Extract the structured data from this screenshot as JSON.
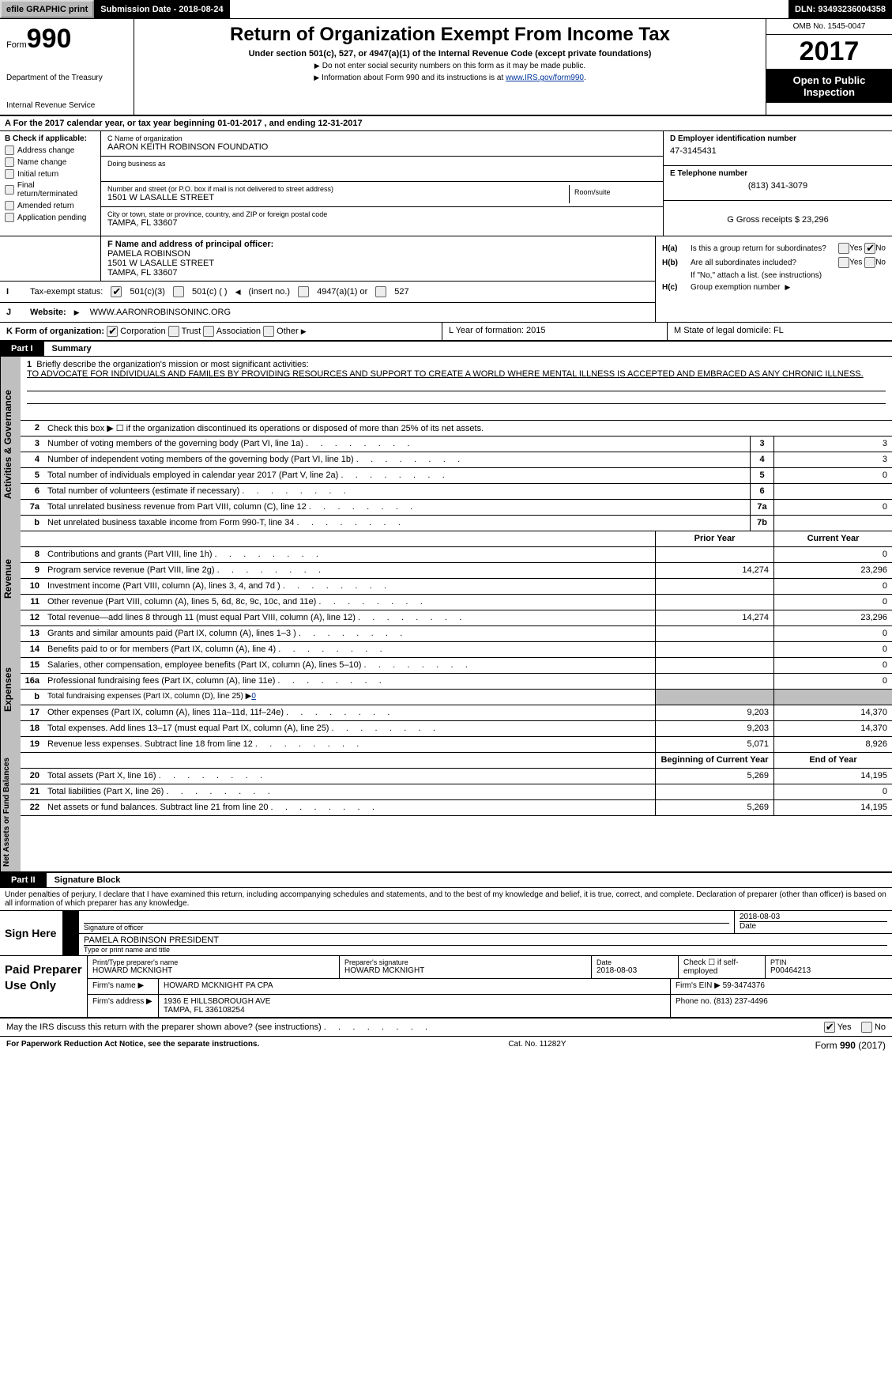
{
  "topbar": {
    "efile": "efile GRAPHIC print",
    "submission": "Submission Date - 2018-08-24",
    "dln": "DLN: 93493236004358"
  },
  "header": {
    "form_word": "Form",
    "form_no": "990",
    "title": "Return of Organization Exempt From Income Tax",
    "subtitle": "Under section 501(c), 527, or 4947(a)(1) of the Internal Revenue Code (except private foundations)",
    "note1": "Do not enter social security numbers on this form as it may be made public.",
    "note2_a": "Information about Form 990 and its instructions is at ",
    "note2_link": "www.IRS.gov/form990",
    "dept": "Department of the Treasury",
    "irs": "Internal Revenue Service",
    "omb": "OMB No. 1545-0047",
    "year": "2017",
    "open1": "Open to Public",
    "open2": "Inspection"
  },
  "row_a": "A   For the 2017 calendar year, or tax year beginning 01-01-2017       , and ending 12-31-2017",
  "col_b": {
    "hdr": "B Check if applicable:",
    "items": [
      "Address change",
      "Name change",
      "Initial return",
      "Final return/terminated",
      "Amended return",
      "Application pending"
    ]
  },
  "col_c": {
    "name_lbl": "C Name of organization",
    "name_val": "AARON KEITH ROBINSON FOUNDATIO",
    "dba_lbl": "Doing business as",
    "addr_lbl": "Number and street (or P.O. box if mail is not delivered to street address)",
    "addr_val": "1501 W LASALLE STREET",
    "room_lbl": "Room/suite",
    "city_lbl": "City or town, state or province, country, and ZIP or foreign postal code",
    "city_val": "TAMPA, FL  33607"
  },
  "col_d": {
    "ein_lbl": "D Employer identification number",
    "ein_val": "47-3145431",
    "tel_lbl": "E Telephone number",
    "tel_val": "(813) 341-3079",
    "gross_lbl": "G Gross receipts $ 23,296"
  },
  "fg": {
    "f_lbl": "F Name and address of principal officer:",
    "f_name": "PAMELA ROBINSON",
    "f_addr1": "1501 W LASALLE STREET",
    "f_addr2": "TAMPA, FL  33607",
    "i_lbl": "Tax-exempt status:",
    "i_501c3": "501(c)(3)",
    "i_501c": "501(c) (   )",
    "i_insert": "(insert no.)",
    "i_4947": "4947(a)(1) or",
    "i_527": "527",
    "j_lbl": "Website:",
    "j_val": "WWW.AARONROBINSONINC.ORG"
  },
  "ha": {
    "ha_q": "Is this a group return for subordinates?",
    "hb_q": "Are all subordinates included?",
    "hb_note": "If \"No,\" attach a list. (see instructions)",
    "hc_q": "Group exemption number",
    "yes": "Yes",
    "no": "No"
  },
  "k": {
    "lbl": "K Form of organization:",
    "corp": "Corporation",
    "trust": "Trust",
    "assoc": "Association",
    "other": "Other"
  },
  "lm": {
    "l": "L Year of formation: 2015",
    "m": "M State of legal domicile: FL"
  },
  "part1": {
    "pt": "Part I",
    "pn": "Summary",
    "tab1": "Activities & Governance",
    "tab2": "Revenue",
    "tab3": "Expenses",
    "tab4": "Net Assets or Fund Balances",
    "l1_lbl": "Briefly describe the organization's mission or most significant activities:",
    "l1_val": "TO ADVOCATE FOR INDIVIDUALS AND FAMILES BY PROVIDING RESOURCES AND SUPPORT TO CREATE A WORLD WHERE MENTAL ILLNESS IS ACCEPTED AND EMBRACED AS ANY CHRONIC ILLNESS.",
    "l2": "Check this box ▶ ☐   if the organization discontinued its operations or disposed of more than 25% of its net assets.",
    "lines_gov": [
      {
        "n": "3",
        "d": "Number of voting members of the governing body (Part VI, line 1a)",
        "box": "3",
        "v": "3"
      },
      {
        "n": "4",
        "d": "Number of independent voting members of the governing body (Part VI, line 1b)",
        "box": "4",
        "v": "3"
      },
      {
        "n": "5",
        "d": "Total number of individuals employed in calendar year 2017 (Part V, line 2a)",
        "box": "5",
        "v": "0"
      },
      {
        "n": "6",
        "d": "Total number of volunteers (estimate if necessary)",
        "box": "6",
        "v": ""
      },
      {
        "n": "7a",
        "d": "Total unrelated business revenue from Part VIII, column (C), line 12",
        "box": "7a",
        "v": "0"
      },
      {
        "n": "b",
        "d": "Net unrelated business taxable income from Form 990-T, line 34",
        "box": "7b",
        "v": ""
      }
    ],
    "hdr_prior": "Prior Year",
    "hdr_curr": "Current Year",
    "lines_rev": [
      {
        "n": "8",
        "d": "Contributions and grants (Part VIII, line 1h)",
        "p": "",
        "c": "0"
      },
      {
        "n": "9",
        "d": "Program service revenue (Part VIII, line 2g)",
        "p": "14,274",
        "c": "23,296"
      },
      {
        "n": "10",
        "d": "Investment income (Part VIII, column (A), lines 3, 4, and 7d )",
        "p": "",
        "c": "0"
      },
      {
        "n": "11",
        "d": "Other revenue (Part VIII, column (A), lines 5, 6d, 8c, 9c, 10c, and 11e)",
        "p": "",
        "c": "0"
      },
      {
        "n": "12",
        "d": "Total revenue—add lines 8 through 11 (must equal Part VIII, column (A), line 12)",
        "p": "14,274",
        "c": "23,296"
      }
    ],
    "lines_exp": [
      {
        "n": "13",
        "d": "Grants and similar amounts paid (Part IX, column (A), lines 1–3 )",
        "p": "",
        "c": "0"
      },
      {
        "n": "14",
        "d": "Benefits paid to or for members (Part IX, column (A), line 4)",
        "p": "",
        "c": "0"
      },
      {
        "n": "15",
        "d": "Salaries, other compensation, employee benefits (Part IX, column (A), lines 5–10)",
        "p": "",
        "c": "0"
      },
      {
        "n": "16a",
        "d": "Professional fundraising fees (Part IX, column (A), line 11e)",
        "p": "",
        "c": "0"
      }
    ],
    "l16b": "Total fundraising expenses (Part IX, column (D), line 25) ▶",
    "l16b_val": "0",
    "lines_exp2": [
      {
        "n": "17",
        "d": "Other expenses (Part IX, column (A), lines 11a–11d, 11f–24e)",
        "p": "9,203",
        "c": "14,370"
      },
      {
        "n": "18",
        "d": "Total expenses. Add lines 13–17 (must equal Part IX, column (A), line 25)",
        "p": "9,203",
        "c": "14,370"
      },
      {
        "n": "19",
        "d": "Revenue less expenses. Subtract line 18 from line 12",
        "p": "5,071",
        "c": "8,926"
      }
    ],
    "hdr_begin": "Beginning of Current Year",
    "hdr_end": "End of Year",
    "lines_net": [
      {
        "n": "20",
        "d": "Total assets (Part X, line 16)",
        "p": "5,269",
        "c": "14,195"
      },
      {
        "n": "21",
        "d": "Total liabilities (Part X, line 26)",
        "p": "",
        "c": "0"
      },
      {
        "n": "22",
        "d": "Net assets or fund balances. Subtract line 21 from line 20",
        "p": "5,269",
        "c": "14,195"
      }
    ]
  },
  "part2": {
    "pt": "Part II",
    "pn": "Signature Block",
    "penalties": "Under penalties of perjury, I declare that I have examined this return, including accompanying schedules and statements, and to the best of my knowledge and belief, it is true, correct, and complete. Declaration of preparer (other than officer) is based on all information of which preparer has any knowledge.",
    "sign_here": "Sign Here",
    "sig_officer_lbl": "Signature of officer",
    "sig_date": "2018-08-03",
    "sig_date_lbl": "Date",
    "sig_name": "PAMELA ROBINSON  PRESIDENT",
    "sig_name_lbl": "Type or print name and title"
  },
  "preparer": {
    "lbl": "Paid Preparer Use Only",
    "p_name_lbl": "Print/Type preparer's name",
    "p_name": "HOWARD MCKNIGHT",
    "p_sig_lbl": "Preparer's signature",
    "p_sig": "HOWARD MCKNIGHT",
    "p_date_lbl": "Date",
    "p_date": "2018-08-03",
    "p_check_lbl": "Check ☐ if self-employed",
    "ptin_lbl": "PTIN",
    "ptin": "P00464213",
    "firm_name_lbl": "Firm's name    ▶",
    "firm_name": "HOWARD MCKNIGHT PA CPA",
    "firm_ein_lbl": "Firm's EIN ▶",
    "firm_ein": "59-3474376",
    "firm_addr_lbl": "Firm's address ▶",
    "firm_addr1": "1936 E HILLSBOROUGH AVE",
    "firm_addr2": "TAMPA, FL   336108254",
    "firm_phone_lbl": "Phone no.",
    "firm_phone": "(813) 237-4496"
  },
  "discuss": {
    "q": "May the IRS discuss this return with the preparer shown above? (see instructions)",
    "yes": "Yes",
    "no": "No"
  },
  "footer": {
    "l": "For Paperwork Reduction Act Notice, see the separate instructions.",
    "c": "Cat. No. 11282Y",
    "r": "Form 990 (2017)"
  }
}
